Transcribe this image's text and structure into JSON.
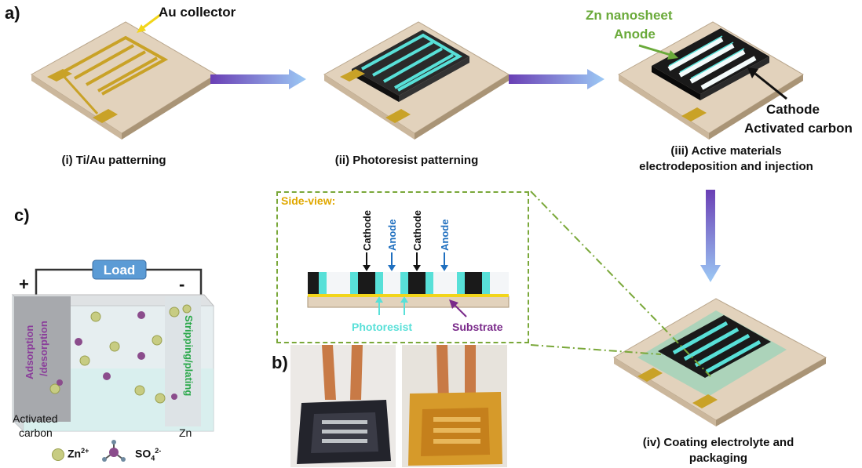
{
  "panels": {
    "a": "a)",
    "b": "b)",
    "c": "c)"
  },
  "steps": {
    "step1": {
      "caption": "(i) Ti/Au patterning",
      "callout": "Au collector"
    },
    "step2": {
      "caption": "(ii) Photoresist patterning"
    },
    "step3": {
      "caption_line1": "(iii) Active materials",
      "caption_line2": "electrodeposition and injection",
      "anode_label_line1": "Zn nanosheet",
      "anode_label_line2": "Anode",
      "cathode_label_line1": "Cathode",
      "cathode_label_line2": "Activated carbon"
    },
    "step4": {
      "caption_line1": "(iv) Coating electrolyte and",
      "caption_line2": "packaging"
    }
  },
  "side_view": {
    "title": "Side-view:",
    "labels": [
      "Cathode",
      "Anode",
      "Cathode",
      "Anode"
    ],
    "photoresist": "Photoresist",
    "substrate": "Substrate"
  },
  "battery": {
    "load": "Load",
    "plus": "+",
    "minus": "-",
    "left_wall_line1": "Adsorption",
    "left_wall_line2": "/desorption",
    "right_wall": "Stripping/plating",
    "left_electrode_line1": "Activated",
    "left_electrode_line2": "carbon",
    "right_electrode": "Zn",
    "legend_zn": "Zn",
    "legend_zn_sup": "2+",
    "legend_so4": "SO",
    "legend_so4_sub": "4",
    "legend_so4_sup": "2-"
  },
  "colors": {
    "gold": "#c9a227",
    "cyan": "#58e0d8",
    "black": "#1a1a1a",
    "arrow_start": "#6a3fb5",
    "arrow_end": "#9cc9f5",
    "green_label": "#6aaa3a",
    "purple": "#7a2a8a",
    "blue": "#1f6fbf",
    "side_title": "#e0a800"
  }
}
